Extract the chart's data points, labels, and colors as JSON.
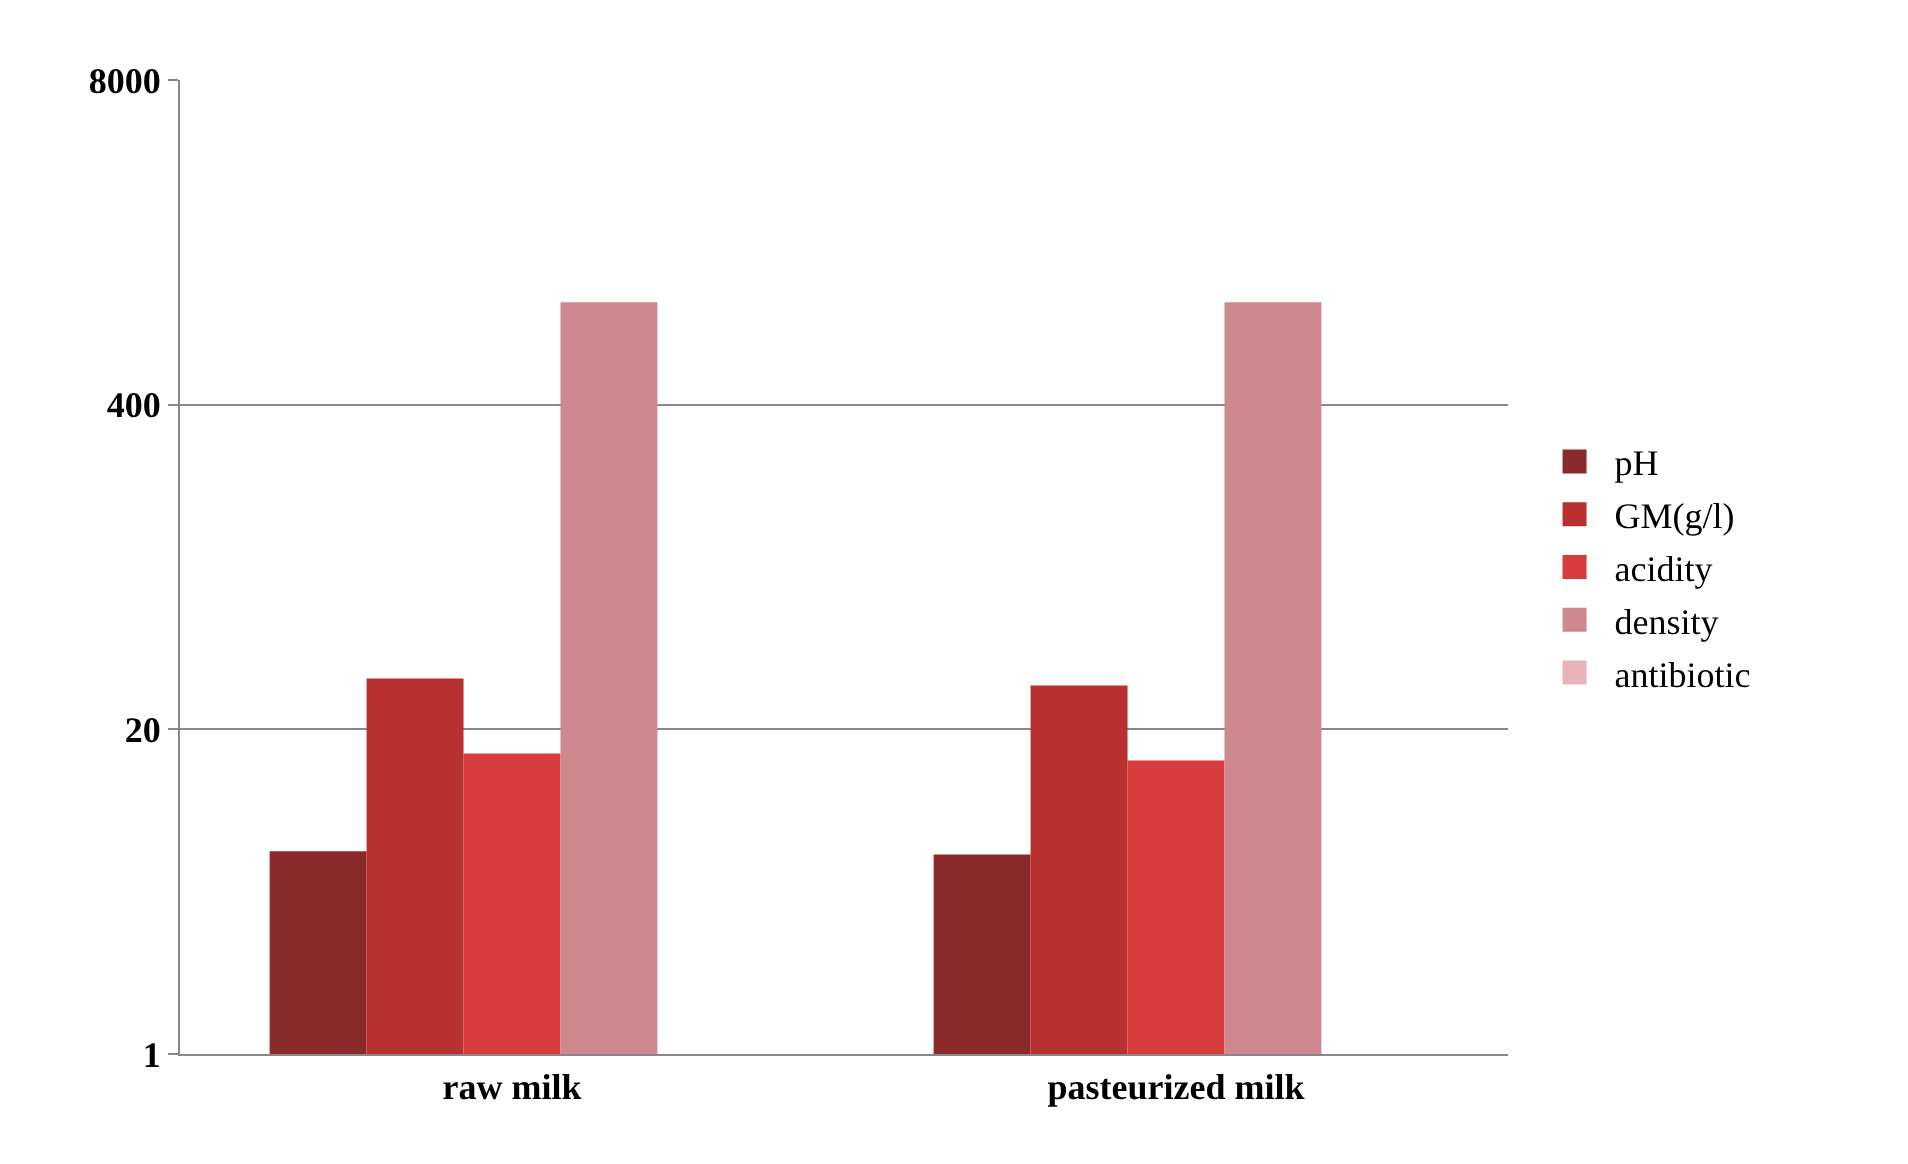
{
  "chart_data": {
    "type": "bar",
    "categories": [
      "raw milk",
      "pasteurized milk"
    ],
    "series": [
      {
        "name": "pH",
        "color": "#8b2a2a",
        "values": [
          6.5,
          6.3
        ]
      },
      {
        "name": "GM(g/l)",
        "color": "#b83030",
        "values": [
          32,
          30
        ]
      },
      {
        "name": "acidity",
        "color": "#d83c3c",
        "values": [
          16,
          15
        ]
      },
      {
        "name": "density",
        "color": "#d08890",
        "values": [
          1030,
          1030
        ]
      },
      {
        "name": "antibiotic",
        "color": "#e8b4bc",
        "values": [
          null,
          null
        ]
      }
    ],
    "log": "y",
    "ylim": [
      1,
      8000
    ],
    "yticks": [
      1,
      20,
      400,
      8000
    ],
    "grid": "y",
    "legend": "right"
  }
}
